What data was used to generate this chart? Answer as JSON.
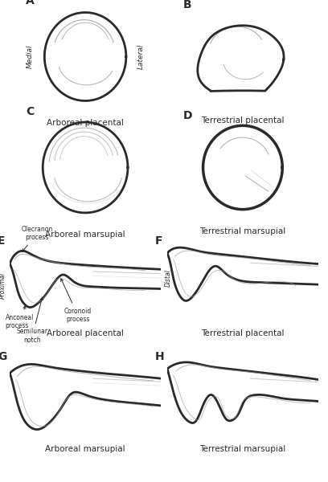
{
  "bg_color": "#ffffff",
  "line_color": "#2a2a2a",
  "light_line_color": "#999999",
  "lighter_line_color": "#cccccc",
  "panel_label_fontsize": 10,
  "caption_fontsize": 7.5,
  "annotation_fontsize": 5.5,
  "captions": {
    "A": "Arboreal placental",
    "B": "Terrestrial placental",
    "C": "Arboreal marsupial",
    "D": "Terrestrial marsupial",
    "E": "Arboreal placental",
    "F": "Terrestrial placental",
    "G": "Arboreal marsupial",
    "H": "Terrestrial marsupial"
  }
}
